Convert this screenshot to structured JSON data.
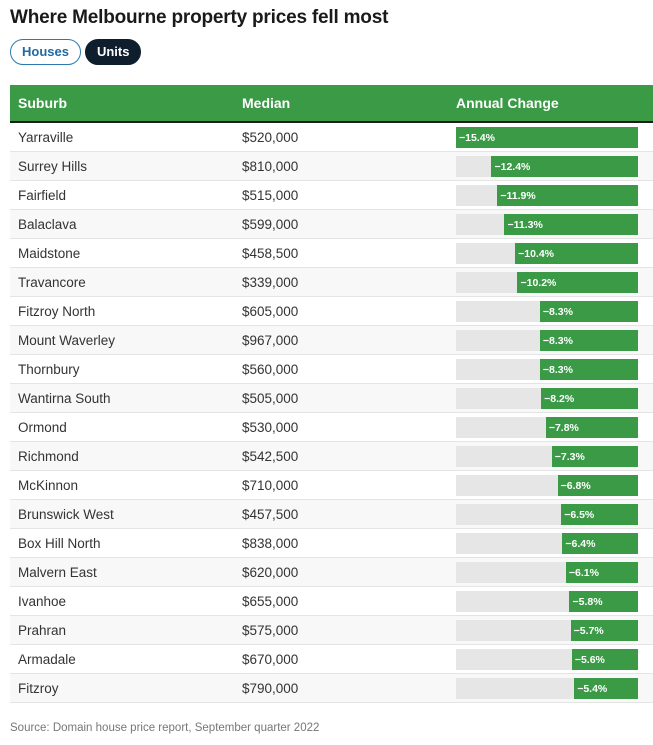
{
  "title": "Where Melbourne property prices fell most",
  "toggles": [
    {
      "label": "Houses",
      "active": false
    },
    {
      "label": "Units",
      "active": true
    }
  ],
  "source": "Source: Domain house price report, September quarter 2022",
  "colors": {
    "header_bg": "#3a9a46",
    "bar": "#3a9a46",
    "track": "#e6e6e6",
    "active_toggle": "#0f1e2d"
  },
  "chart_data": {
    "type": "table",
    "columns": [
      "Suburb",
      "Median",
      "Annual Change"
    ],
    "rows": [
      {
        "suburb": "Yarraville",
        "median": "$520,000",
        "change": -15.4,
        "change_label": "−15.4%"
      },
      {
        "suburb": "Surrey Hills",
        "median": "$810,000",
        "change": -12.4,
        "change_label": "−12.4%"
      },
      {
        "suburb": "Fairfield",
        "median": "$515,000",
        "change": -11.9,
        "change_label": "−11.9%"
      },
      {
        "suburb": "Balaclava",
        "median": "$599,000",
        "change": -11.3,
        "change_label": "−11.3%"
      },
      {
        "suburb": "Maidstone",
        "median": "$458,500",
        "change": -10.4,
        "change_label": "−10.4%"
      },
      {
        "suburb": "Travancore",
        "median": "$339,000",
        "change": -10.2,
        "change_label": "−10.2%"
      },
      {
        "suburb": "Fitzroy North",
        "median": "$605,000",
        "change": -8.3,
        "change_label": "−8.3%"
      },
      {
        "suburb": "Mount Waverley",
        "median": "$967,000",
        "change": -8.3,
        "change_label": "−8.3%"
      },
      {
        "suburb": "Thornbury",
        "median": "$560,000",
        "change": -8.3,
        "change_label": "−8.3%"
      },
      {
        "suburb": "Wantirna South",
        "median": "$505,000",
        "change": -8.2,
        "change_label": "−8.2%"
      },
      {
        "suburb": "Ormond",
        "median": "$530,000",
        "change": -7.8,
        "change_label": "−7.8%"
      },
      {
        "suburb": "Richmond",
        "median": "$542,500",
        "change": -7.3,
        "change_label": "−7.3%"
      },
      {
        "suburb": "McKinnon",
        "median": "$710,000",
        "change": -6.8,
        "change_label": "−6.8%"
      },
      {
        "suburb": "Brunswick West",
        "median": "$457,500",
        "change": -6.5,
        "change_label": "−6.5%"
      },
      {
        "suburb": "Box Hill North",
        "median": "$838,000",
        "change": -6.4,
        "change_label": "−6.4%"
      },
      {
        "suburb": "Malvern East",
        "median": "$620,000",
        "change": -6.1,
        "change_label": "−6.1%"
      },
      {
        "suburb": "Ivanhoe",
        "median": "$655,000",
        "change": -5.8,
        "change_label": "−5.8%"
      },
      {
        "suburb": "Prahran",
        "median": "$575,000",
        "change": -5.7,
        "change_label": "−5.7%"
      },
      {
        "suburb": "Armadale",
        "median": "$670,000",
        "change": -5.6,
        "change_label": "−5.6%"
      },
      {
        "suburb": "Fitzroy",
        "median": "$790,000",
        "change": -5.4,
        "change_label": "−5.4%"
      }
    ]
  }
}
